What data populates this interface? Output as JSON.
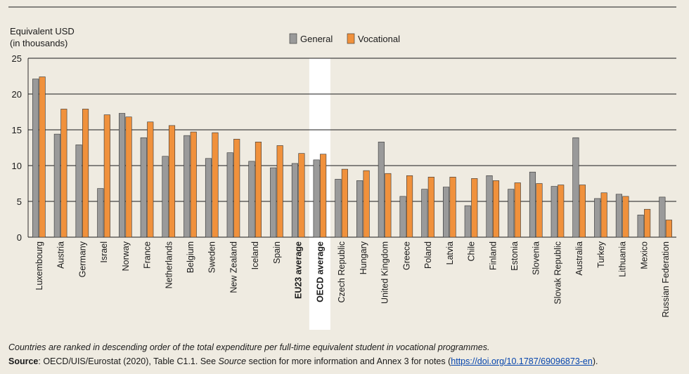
{
  "chart_data": {
    "type": "bar",
    "ylabel_line1": "Equivalent USD",
    "ylabel_line2": "(in thousands)",
    "ylim": [
      0,
      25
    ],
    "yticks": [
      0,
      5,
      10,
      15,
      20,
      25
    ],
    "grid": true,
    "legend_position": "top-center",
    "highlight_category": "OECD average",
    "bold_categories": [
      "EU23 average",
      "OECD average"
    ],
    "categories": [
      "Luxembourg",
      "Austria",
      "Germany",
      "Israel",
      "Norway",
      "France",
      "Netherlands",
      "Belgium",
      "Sweden",
      "New Zealand",
      "Iceland",
      "Spain",
      "EU23 average",
      "OECD average",
      "Czech Republic",
      "Hungary",
      "United Kingdom",
      "Greece",
      "Poland",
      "Latvia",
      "Chile",
      "Finland",
      "Estonia",
      "Slovenia",
      "Slovak Republic",
      "Australia",
      "Turkey",
      "Lithuania",
      "Mexico",
      "Russian Federation"
    ],
    "series": [
      {
        "name": "General",
        "color": "#9a9a9a",
        "values": [
          22.1,
          14.4,
          12.9,
          6.8,
          17.3,
          13.9,
          11.3,
          14.2,
          11.0,
          11.8,
          10.6,
          9.7,
          10.3,
          10.8,
          8.1,
          7.9,
          13.3,
          5.7,
          6.7,
          7.0,
          4.4,
          8.6,
          6.7,
          9.1,
          7.1,
          13.9,
          5.4,
          6.0,
          3.1,
          5.6
        ]
      },
      {
        "name": "Vocational",
        "color": "#f0913c",
        "values": [
          22.4,
          17.9,
          17.9,
          17.1,
          16.8,
          16.1,
          15.6,
          14.7,
          14.6,
          13.7,
          13.3,
          12.8,
          11.7,
          11.6,
          9.5,
          9.3,
          8.9,
          8.6,
          8.4,
          8.4,
          8.2,
          7.9,
          7.6,
          7.5,
          7.3,
          7.3,
          6.2,
          5.7,
          3.9,
          2.4
        ]
      }
    ]
  },
  "notes": {
    "ranking_note": "Countries are ranked in descending order of the total expenditure per full-time equivalent student in vocational programmes.",
    "source_label": "Source",
    "source_text": ": OECD/UIS/Eurostat (2020), Table C1.1. See ",
    "source_italic": "Source",
    "source_text2": " section for more information and Annex 3 for notes (",
    "source_link": "https://doi.org/10.1787/69096873-en",
    "source_end": ")."
  }
}
